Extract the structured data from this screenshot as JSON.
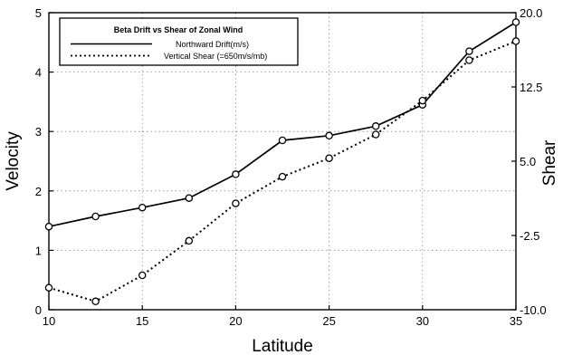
{
  "chart_data": {
    "type": "line",
    "title": "Beta Drift vs Shear of Zonal Wind",
    "xlabel": "Latitude",
    "ylabel": "Velocity",
    "y2label": "Shear",
    "xlim": [
      10,
      35
    ],
    "ylim": [
      0,
      5
    ],
    "y2lim": [
      -10,
      20
    ],
    "x_ticks": [
      10,
      15,
      20,
      25,
      30,
      35
    ],
    "y_ticks": [
      0,
      1,
      2,
      3,
      4,
      5
    ],
    "y2_ticks": [
      "20.0",
      "12.5",
      "5.0",
      "-2.5",
      "-10.0"
    ],
    "y2_tick_values": [
      20,
      12.5,
      5,
      -2.5,
      -10
    ],
    "grid": true,
    "legend_position": "top-left",
    "x": [
      10,
      12.5,
      15,
      17.5,
      20,
      22.5,
      25,
      27.5,
      30,
      32.5,
      35
    ],
    "series": [
      {
        "name": "Northward Drift(m/s)",
        "style": "solid",
        "values": [
          1.4,
          1.57,
          1.72,
          1.88,
          2.28,
          2.85,
          2.93,
          3.09,
          3.45,
          4.35,
          4.84
        ]
      },
      {
        "name": "Vertical Shear (=650m/s/mb)",
        "style": "dotted",
        "values": [
          0.37,
          0.14,
          0.58,
          1.16,
          1.79,
          2.24,
          2.55,
          2.95,
          3.52,
          4.2,
          4.52
        ]
      }
    ]
  }
}
